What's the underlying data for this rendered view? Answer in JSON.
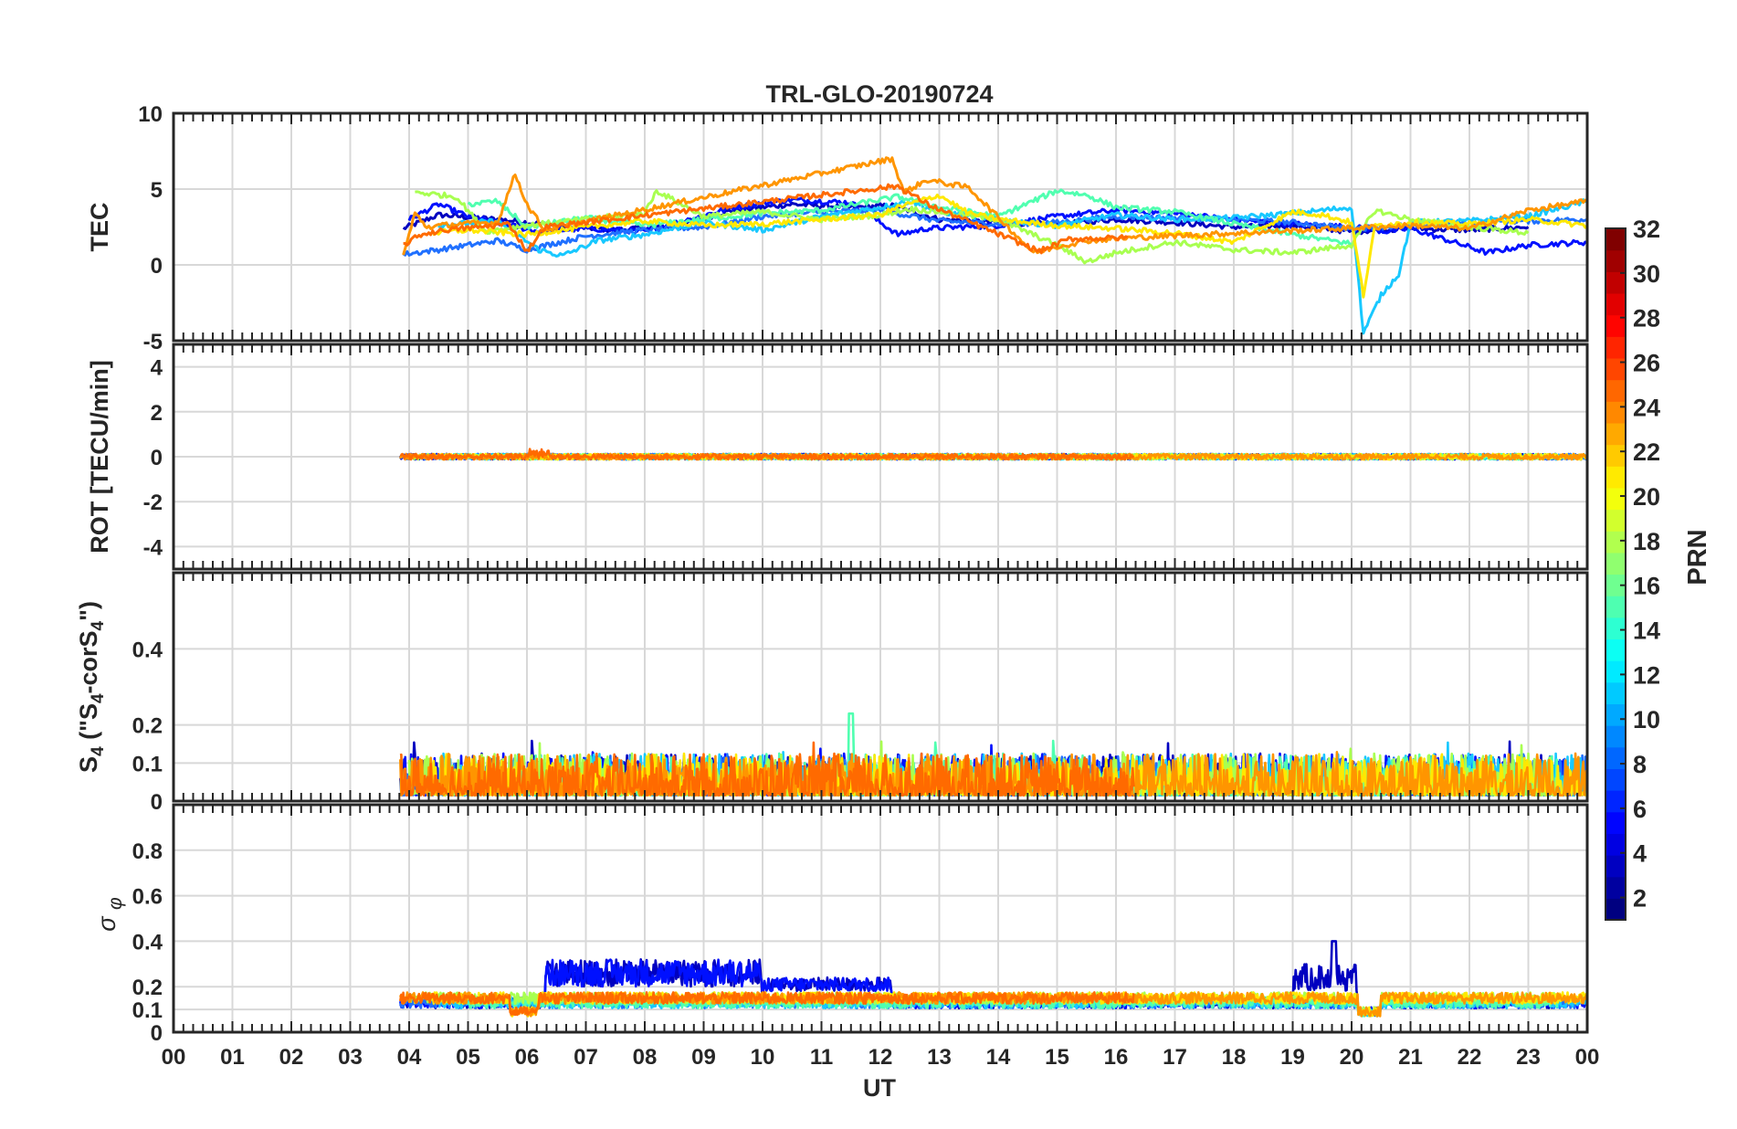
{
  "chart_data": {
    "type": "line",
    "title": "TRL-GLO-20190724",
    "xlabel": "UT",
    "x_range_hours": [
      0,
      24
    ],
    "x_tick_labels": [
      "00",
      "01",
      "02",
      "03",
      "04",
      "05",
      "06",
      "07",
      "08",
      "09",
      "10",
      "11",
      "12",
      "13",
      "14",
      "15",
      "16",
      "17",
      "18",
      "19",
      "20",
      "21",
      "22",
      "23",
      "00"
    ],
    "panels": [
      {
        "id": "tec",
        "ylabel": "TEC",
        "ylim": [
          -5,
          10
        ],
        "yticks": [
          -5,
          0,
          5,
          10
        ],
        "ytick_labels": [
          "-5",
          "0",
          "5",
          "10"
        ],
        "grid": true,
        "approx_time_coverage_hours": [
          3.85,
          24
        ],
        "typical_values": "mostly 0 to 6 TECU; dip to about -5 near 20.2 UT"
      },
      {
        "id": "rot",
        "ylabel": "ROT [TECU/min]",
        "ylim": [
          -5,
          5
        ],
        "yticks": [
          -4,
          -2,
          0,
          2,
          4
        ],
        "ytick_labels": [
          "-4",
          "-2",
          "0",
          "2",
          "4"
        ],
        "grid": true,
        "approx_time_coverage_hours": [
          3.85,
          24
        ],
        "typical_values": "near 0 (|ROT| < 0.4)"
      },
      {
        "id": "s4",
        "ylabel": "S4 (\"S4-corS4\")",
        "ylabel_parts": {
          "main": "S",
          "sub": "4",
          "open": " (\"S",
          "sub2": "4",
          "mid": "-corS",
          "sub3": "4",
          "close": "\")"
        },
        "ylim": [
          0,
          0.6
        ],
        "yticks": [
          0,
          0.1,
          0.2,
          0.4
        ],
        "ytick_labels": [
          "0",
          "0.1",
          "0.2",
          "0.4"
        ],
        "grid": true,
        "approx_time_coverage_hours": [
          3.85,
          24
        ],
        "typical_values": "0.02 to 0.16, peak about 0.23 near 11.5 UT"
      },
      {
        "id": "sigma_phi",
        "ylabel": "σ φ",
        "ylabel_parts": {
          "main": "σ",
          "sub": "φ"
        },
        "ylim": [
          0,
          1
        ],
        "yticks": [
          0,
          0.1,
          0.2,
          0.4,
          0.6,
          0.8
        ],
        "ytick_labels": [
          "0",
          "0.1",
          "0.2",
          "0.4",
          "0.6",
          "0.8"
        ],
        "grid": true,
        "approx_time_coverage_hours": [
          3.85,
          24
        ],
        "typical_values": "0.1 to 0.2; PRN 1-4 up to about 0.35 between 6.3 and 10 UT, spike about 0.4 near 19.7 UT"
      }
    ],
    "colorbar": {
      "label": "PRN",
      "range": [
        1,
        32
      ],
      "colormap": "jet",
      "tick_labels": [
        "2",
        "4",
        "6",
        "8",
        "10",
        "12",
        "14",
        "16",
        "18",
        "20",
        "22",
        "24",
        "26",
        "28",
        "30",
        "32"
      ]
    },
    "series": [
      {
        "name": "PRN 2",
        "prn": 2,
        "color": "#0000c0",
        "time_hours": [
          3.85,
          23.5
        ],
        "tec": [
          [
            3.9,
            2.4
          ],
          [
            4.5,
            3.3
          ],
          [
            5.5,
            3.0
          ],
          [
            6.5,
            2.6
          ],
          [
            7.5,
            2.3
          ],
          [
            8.5,
            2.6
          ],
          [
            9.5,
            3.6
          ],
          [
            10.5,
            4.0
          ],
          [
            11.5,
            3.8
          ],
          [
            12.2,
            3.9
          ],
          [
            13,
            3.0
          ],
          [
            14,
            2.8
          ],
          [
            15,
            2.7
          ],
          [
            16,
            3.0
          ],
          [
            17,
            2.8
          ],
          [
            18,
            2.5
          ],
          [
            19,
            2.6
          ],
          [
            20,
            2.2
          ],
          [
            21,
            2.4
          ],
          [
            22,
            2.3
          ],
          [
            23,
            2.5
          ]
        ]
      },
      {
        "name": "PRN 4",
        "prn": 4,
        "color": "#0010ff",
        "time_hours": [
          3.85,
          24
        ],
        "tec": [
          [
            4.0,
            3.0
          ],
          [
            4.5,
            4.0
          ],
          [
            5.0,
            3.2
          ],
          [
            6.2,
            2.2
          ],
          [
            7.0,
            2.4
          ],
          [
            8.0,
            2.2
          ],
          [
            9.5,
            3.8
          ],
          [
            10.5,
            4.3
          ],
          [
            11.5,
            4.1
          ],
          [
            12.3,
            2.0
          ],
          [
            12.8,
            2.4
          ],
          [
            14,
            2.6
          ],
          [
            15,
            3.2
          ],
          [
            16,
            3.6
          ],
          [
            17,
            3.4
          ],
          [
            18,
            3.0
          ],
          [
            19,
            2.7
          ],
          [
            20,
            2.5
          ],
          [
            20.6,
            2.2
          ],
          [
            21,
            2.4
          ],
          [
            22.3,
            0.8
          ],
          [
            23,
            1.3
          ],
          [
            24,
            1.5
          ]
        ]
      },
      {
        "name": "PRN 7",
        "prn": 7,
        "color": "#2070ff",
        "time_hours": [
          3.85,
          24
        ],
        "tec": [
          [
            3.9,
            0.7
          ],
          [
            4.5,
            1.0
          ],
          [
            5.5,
            1.6
          ],
          [
            6.0,
            1.0
          ],
          [
            7,
            1.9
          ],
          [
            8,
            2.3
          ],
          [
            9,
            2.5
          ],
          [
            10,
            3.2
          ],
          [
            11,
            3.5
          ],
          [
            12,
            3.6
          ],
          [
            13,
            2.9
          ],
          [
            14,
            2.7
          ],
          [
            15,
            2.8
          ],
          [
            16,
            3.2
          ],
          [
            17,
            3.1
          ],
          [
            18,
            3.0
          ],
          [
            19,
            2.8
          ],
          [
            20,
            2.4
          ],
          [
            21,
            2.6
          ],
          [
            22,
            2.8
          ],
          [
            23,
            2.9
          ],
          [
            24,
            3.0
          ]
        ]
      },
      {
        "name": "PRN 11",
        "prn": 11,
        "color": "#18c8ff",
        "time_hours": [
          4.5,
          24
        ],
        "tec": [
          [
            4.5,
            2.6
          ],
          [
            5.5,
            2.9
          ],
          [
            6.2,
            1.0
          ],
          [
            6.6,
            0.6
          ],
          [
            7.2,
            1.6
          ],
          [
            8,
            2.0
          ],
          [
            9,
            2.8
          ],
          [
            10,
            2.3
          ],
          [
            11,
            3.2
          ],
          [
            12,
            3.8
          ],
          [
            12.5,
            4.2
          ],
          [
            13,
            3.5
          ],
          [
            14,
            3.0
          ],
          [
            15,
            2.6
          ],
          [
            16,
            3.3
          ],
          [
            17,
            3.0
          ],
          [
            18,
            3.1
          ],
          [
            19,
            3.4
          ],
          [
            20,
            3.8
          ],
          [
            20.2,
            -4.5
          ],
          [
            20.5,
            -2.0
          ],
          [
            20.8,
            -0.6
          ],
          [
            21,
            2.8
          ],
          [
            22,
            2.9
          ],
          [
            23,
            3.2
          ],
          [
            24,
            4.2
          ]
        ]
      },
      {
        "name": "PRN 15",
        "prn": 15,
        "color": "#50ffb0",
        "time_hours": [
          5,
          23.5
        ],
        "tec": [
          [
            5,
            4.0
          ],
          [
            5.5,
            4.2
          ],
          [
            6,
            2.5
          ],
          [
            7,
            3.1
          ],
          [
            8,
            2.6
          ],
          [
            9,
            3.0
          ],
          [
            10,
            3.4
          ],
          [
            11,
            3.6
          ],
          [
            12.3,
            4.5
          ],
          [
            13,
            3.8
          ],
          [
            14,
            3.2
          ],
          [
            15,
            4.9
          ],
          [
            15.5,
            4.6
          ],
          [
            16,
            3.8
          ],
          [
            17,
            3.5
          ],
          [
            18,
            2.7
          ],
          [
            19,
            2.0
          ],
          [
            20,
            1.4
          ]
        ]
      },
      {
        "name": "PRN 17",
        "prn": 17,
        "color": "#a8ff50",
        "time_hours": [
          4,
          23.5
        ],
        "tec": [
          [
            4.1,
            4.8
          ],
          [
            4.8,
            4.5
          ],
          [
            5.3,
            2.2
          ],
          [
            6,
            2.6
          ],
          [
            7,
            3.0
          ],
          [
            8,
            3.4
          ],
          [
            8.2,
            4.9
          ],
          [
            9,
            3.2
          ],
          [
            10,
            3.5
          ],
          [
            11,
            3.0
          ],
          [
            12,
            3.3
          ],
          [
            12.5,
            3.7
          ],
          [
            13,
            3.5
          ],
          [
            14,
            3.0
          ],
          [
            15,
            1.3
          ],
          [
            15.5,
            0.2
          ],
          [
            16,
            0.8
          ],
          [
            17,
            1.5
          ],
          [
            18,
            1.0
          ],
          [
            19,
            0.8
          ],
          [
            20,
            1.3
          ],
          [
            20.4,
            3.6
          ],
          [
            21,
            3.0
          ],
          [
            22,
            2.5
          ],
          [
            23,
            2.1
          ]
        ]
      },
      {
        "name": "PRN 20",
        "prn": 20,
        "color": "#ffe800",
        "time_hours": [
          4.4,
          24
        ],
        "tec": [
          [
            4.4,
            2.1
          ],
          [
            5,
            2.3
          ],
          [
            6,
            2.0
          ],
          [
            7,
            2.5
          ],
          [
            8,
            2.9
          ],
          [
            9,
            2.6
          ],
          [
            10,
            2.7
          ],
          [
            11,
            3.0
          ],
          [
            12,
            3.3
          ],
          [
            12.3,
            3.8
          ],
          [
            13,
            4.6
          ],
          [
            13.5,
            3.4
          ],
          [
            14,
            3.0
          ],
          [
            15,
            2.6
          ],
          [
            16,
            2.4
          ],
          [
            17,
            2.1
          ],
          [
            18,
            1.5
          ],
          [
            19,
            3.5
          ],
          [
            19.5,
            3.3
          ],
          [
            20,
            2.8
          ],
          [
            20.2,
            -2.0
          ],
          [
            20.4,
            2.6
          ],
          [
            21,
            2.8
          ],
          [
            22,
            2.7
          ],
          [
            23,
            3.0
          ],
          [
            24,
            2.6
          ]
        ]
      },
      {
        "name": "PRN 23",
        "prn": 23,
        "color": "#ff9500",
        "time_hours": [
          3.85,
          24
        ],
        "tec": [
          [
            3.9,
            0.6
          ],
          [
            4.1,
            3.4
          ],
          [
            4.3,
            2.5
          ],
          [
            4.8,
            2.7
          ],
          [
            5.5,
            2.8
          ],
          [
            5.8,
            6.0
          ],
          [
            6.0,
            4.0
          ],
          [
            6.3,
            2.3
          ],
          [
            12.2,
            7.0
          ],
          [
            12.4,
            4.8
          ],
          [
            12.8,
            5.6
          ],
          [
            13.5,
            5.1
          ],
          [
            14.6,
            0.8
          ],
          [
            15,
            1.2
          ],
          [
            15.5,
            1.6
          ],
          [
            16.3,
            1.8
          ],
          [
            21,
            2.6
          ],
          [
            22,
            2.4
          ],
          [
            23,
            3.6
          ],
          [
            24,
            4.2
          ]
        ]
      },
      {
        "name": "PRN 24",
        "prn": 24,
        "color": "#ff6a00",
        "time_hours": [
          3.85,
          16.3
        ],
        "tec": [
          [
            3.9,
            1.3
          ],
          [
            4.2,
            2.0
          ],
          [
            4.6,
            2.3
          ],
          [
            5.2,
            2.5
          ],
          [
            5.7,
            2.7
          ],
          [
            6.0,
            0.9
          ],
          [
            6.3,
            2.5
          ],
          [
            12.3,
            5.2
          ],
          [
            12.8,
            4.0
          ],
          [
            14.7,
            0.9
          ],
          [
            15.2,
            1.7
          ],
          [
            16.2,
            1.8
          ]
        ]
      }
    ]
  }
}
